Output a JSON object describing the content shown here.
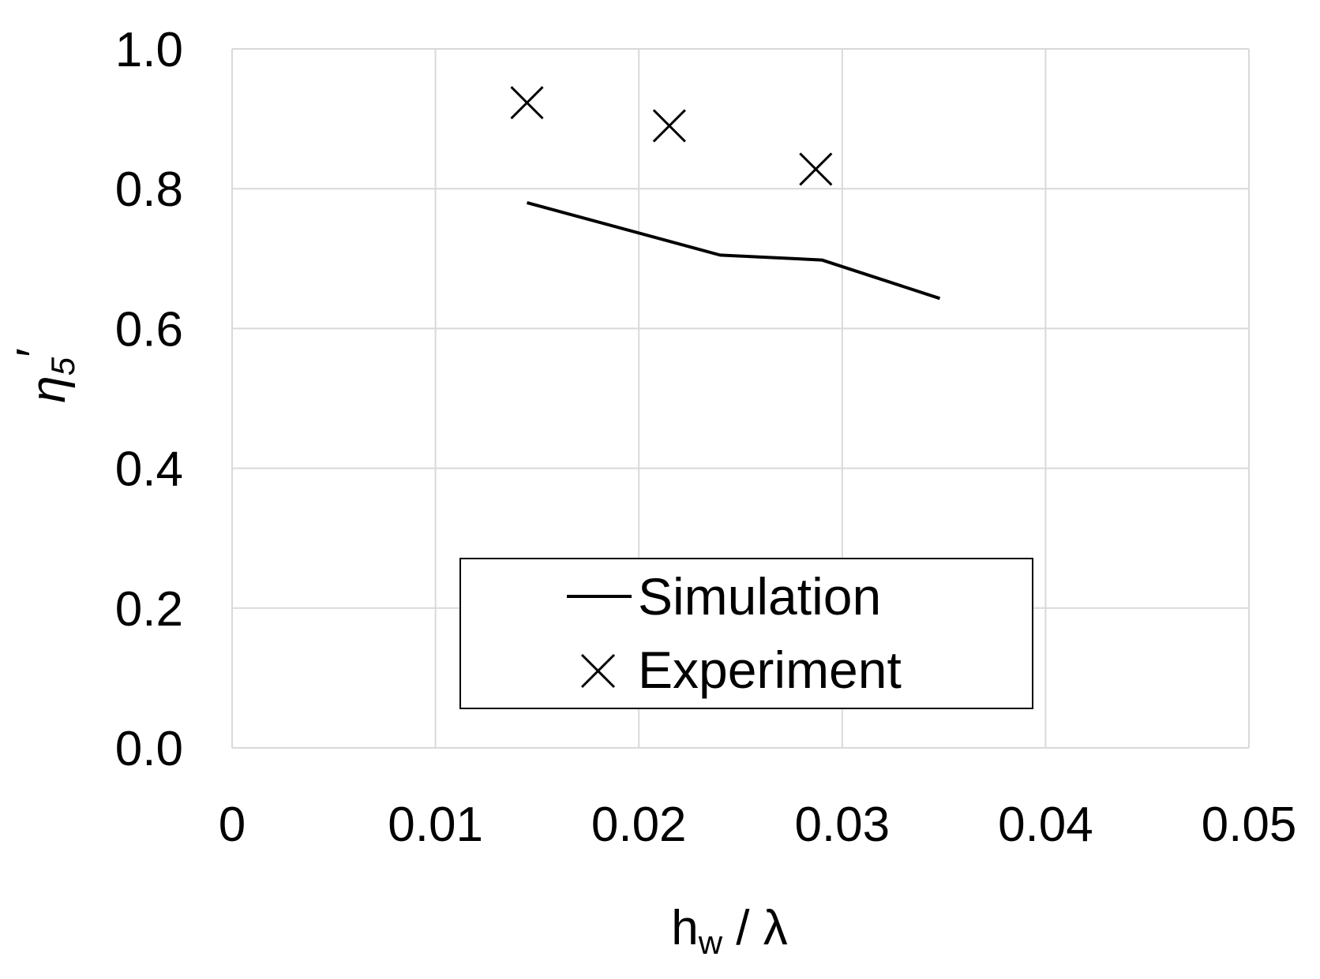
{
  "chart_data": {
    "type": "line",
    "title": "",
    "xlabel": {
      "base": "h",
      "sub": "w",
      "rest": " / λ"
    },
    "ylabel": {
      "base": "η",
      "sub": "5",
      "sup": "′"
    },
    "xlim": [
      0,
      0.05
    ],
    "ylim": [
      0,
      1.0
    ],
    "x_ticks": [
      "0",
      "0.01",
      "0.02",
      "0.03",
      "0.04",
      "0.05"
    ],
    "y_ticks": [
      "0.0",
      "0.2",
      "0.4",
      "0.6",
      "0.8",
      "1.0"
    ],
    "grid": true,
    "legend_position": "bottom-center",
    "series": [
      {
        "name": "Simulation",
        "style": "line",
        "color": "#000000",
        "points": [
          {
            "x": 0.0145,
            "y": 0.78
          },
          {
            "x": 0.024,
            "y": 0.705
          },
          {
            "x": 0.029,
            "y": 0.698
          },
          {
            "x": 0.0348,
            "y": 0.643
          }
        ]
      },
      {
        "name": "Experiment",
        "style": "marker-x",
        "color": "#000000",
        "points": [
          {
            "x": 0.0145,
            "y": 0.923
          },
          {
            "x": 0.0215,
            "y": 0.89
          },
          {
            "x": 0.0287,
            "y": 0.828
          }
        ]
      }
    ]
  }
}
